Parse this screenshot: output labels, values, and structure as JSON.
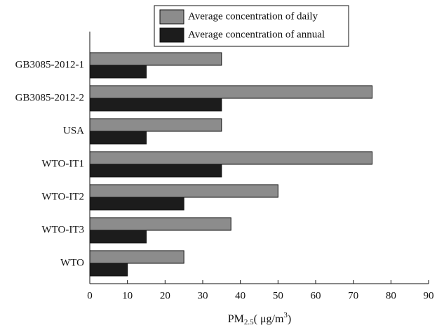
{
  "chart_data": {
    "type": "hbar",
    "categories": [
      "GB3085-2012-1",
      "GB3085-2012-2",
      "USA",
      "WTO-IT1",
      "WTO-IT2",
      "WTO-IT3",
      "WTO"
    ],
    "series": [
      {
        "name": "Average concentration of daily",
        "color": "#8c8c8c",
        "values": [
          35,
          75,
          35,
          75,
          50,
          37.5,
          25
        ]
      },
      {
        "name": "Average concentration of annual",
        "color": "#1c1c1c",
        "values": [
          15,
          35,
          15,
          35,
          25,
          15,
          10
        ]
      }
    ],
    "x_label": {
      "base": "PM",
      "sub": "2.5",
      "mid": "( μg/m",
      "sup": "3",
      "end": ")"
    },
    "xlim": [
      0,
      90
    ],
    "xticks": [
      0,
      10,
      20,
      30,
      40,
      50,
      60,
      70,
      80,
      90
    ],
    "legend": "top"
  }
}
